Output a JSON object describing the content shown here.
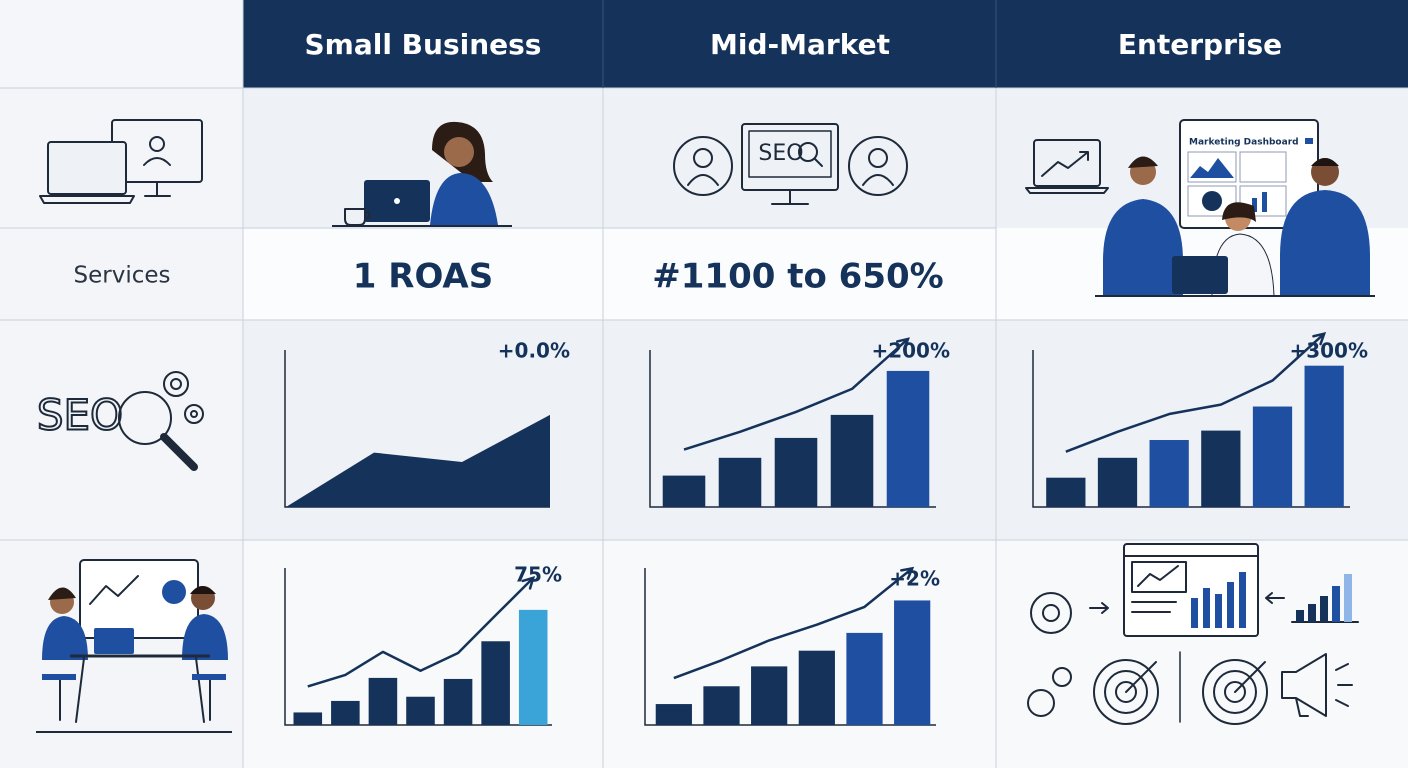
{
  "header": {
    "columns": [
      "Small Business",
      "Mid-Market",
      "Enterprise"
    ]
  },
  "services_row": {
    "label": "Services",
    "cells": [
      "1 ROAS",
      "#1100 to 650%"
    ]
  },
  "illustration_texts": {
    "seo_monitor": "SEO",
    "seo_logo": "SEO",
    "dashboard": "Marketing Dashboard"
  },
  "charts": [
    {
      "type": "area",
      "label": "+0.0%",
      "values": [
        0,
        52,
        43,
        88
      ],
      "ylim": [
        0,
        150
      ],
      "color": "#14325a"
    },
    {
      "type": "bar",
      "label": "+200%",
      "values": [
        30,
        47,
        66,
        88,
        130
      ],
      "ylim": [
        0,
        150
      ],
      "trend": true,
      "colors": [
        "#14325a",
        "#14325a",
        "#14325a",
        "#14325a",
        "#1f4fa0"
      ]
    },
    {
      "type": "bar",
      "label": "+300%",
      "values": [
        28,
        47,
        64,
        73,
        96,
        135
      ],
      "ylim": [
        0,
        150
      ],
      "trend": true,
      "colors": [
        "#14325a",
        "#14325a",
        "#1f4fa0",
        "#14325a",
        "#1f4fa0",
        "#1f4fa0"
      ]
    },
    {
      "type": "bar",
      "label": "75%",
      "values": [
        12,
        23,
        45,
        27,
        44,
        80,
        110
      ],
      "ylim": [
        0,
        150
      ],
      "trend": true,
      "colors": [
        "#14325a",
        "#14325a",
        "#14325a",
        "#14325a",
        "#14325a",
        "#14325a",
        "#3aa3d8"
      ]
    },
    {
      "type": "bar",
      "label": "+2%",
      "values": [
        20,
        37,
        56,
        71,
        88,
        119
      ],
      "ylim": [
        0,
        150
      ],
      "trend": true,
      "colors": [
        "#14325a",
        "#14325a",
        "#14325a",
        "#14325a",
        "#1f4fa0",
        "#1f4fa0"
      ]
    }
  ]
}
